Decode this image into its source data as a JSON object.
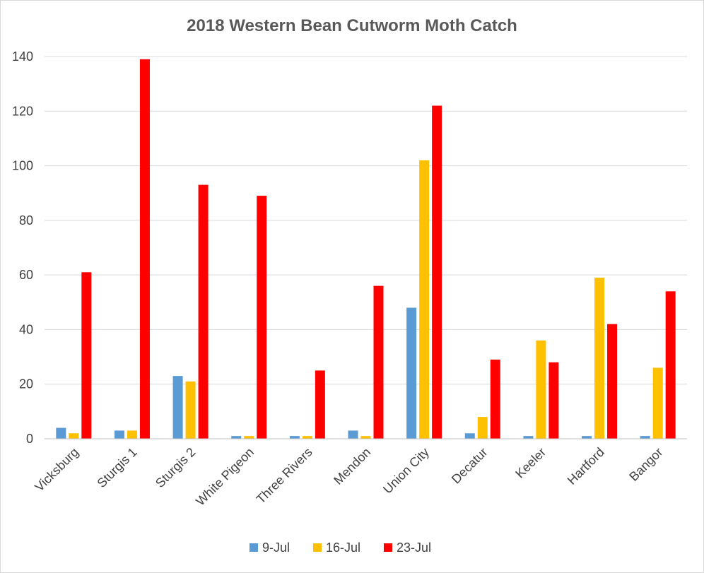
{
  "chart_data": {
    "type": "bar",
    "title": "2018 Western Bean Cutworm Moth Catch",
    "xlabel": "",
    "ylabel": "",
    "ylim": [
      0,
      140
    ],
    "yticks": [
      0,
      20,
      40,
      60,
      80,
      100,
      120,
      140
    ],
    "grid": true,
    "legend_position": "bottom",
    "categories": [
      "Vicksburg",
      "Sturgis 1",
      "Sturgis 2",
      "White Pigeon",
      "Three Rivers",
      "Mendon",
      "Union City",
      "Decatur",
      "Keeler",
      "Hartford",
      "Bangor"
    ],
    "series": [
      {
        "name": "9-Jul",
        "color": "#5b9bd5",
        "values": [
          4,
          3,
          23,
          1,
          1,
          3,
          48,
          2,
          1,
          1,
          1
        ]
      },
      {
        "name": "16-Jul",
        "color": "#ffc000",
        "values": [
          2,
          3,
          21,
          1,
          1,
          1,
          102,
          8,
          36,
          59,
          26
        ]
      },
      {
        "name": "23-Jul",
        "color": "#ff0000",
        "values": [
          61,
          139,
          93,
          89,
          25,
          56,
          122,
          29,
          28,
          42,
          54
        ]
      }
    ]
  }
}
